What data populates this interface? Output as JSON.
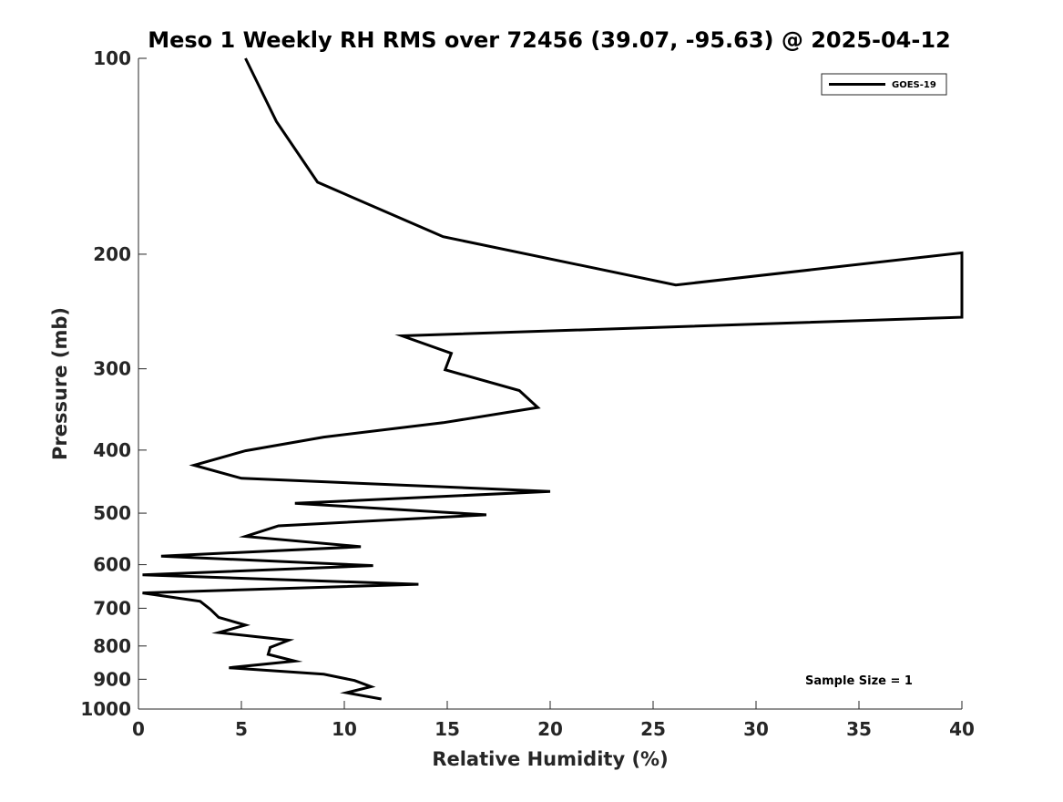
{
  "chart_data": {
    "type": "line",
    "title": "Meso 1 Weekly RH RMS over 72456 (39.07, -95.63) @ 2025-04-12",
    "xlabel": "Relative Humidity (%)",
    "ylabel": "Pressure (mb)",
    "xlim": [
      0,
      40
    ],
    "ylim": [
      100,
      1000
    ],
    "yscale": "log",
    "yreversed": true,
    "grid": false,
    "xticks": [
      "0",
      "5",
      "10",
      "15",
      "20",
      "25",
      "30",
      "35",
      "40"
    ],
    "yticks": [
      "100",
      "200",
      "300",
      "400",
      "500",
      "600",
      "700",
      "800",
      "900",
      "1000"
    ],
    "legend": {
      "position": "top-right",
      "entries": [
        "GOES-19"
      ]
    },
    "annotation": "Sample Size = 1",
    "series": [
      {
        "name": "GOES-19",
        "color": "#000000",
        "points": [
          [
            5.2,
            100
          ],
          [
            6.7,
            125
          ],
          [
            8.7,
            155
          ],
          [
            14.8,
            188
          ],
          [
            26.1,
            223
          ],
          [
            40.0,
            199
          ],
          [
            40.0,
            250
          ],
          [
            12.8,
            267
          ],
          [
            15.2,
            284
          ],
          [
            14.9,
            301
          ],
          [
            18.5,
            324
          ],
          [
            19.4,
            344
          ],
          [
            14.8,
            363
          ],
          [
            9.0,
            382
          ],
          [
            5.2,
            401
          ],
          [
            2.7,
            422
          ],
          [
            5.0,
            442
          ],
          [
            20.0,
            463
          ],
          [
            7.6,
            483
          ],
          [
            16.9,
            503
          ],
          [
            6.8,
            523
          ],
          [
            5.2,
            543
          ],
          [
            10.8,
            563
          ],
          [
            1.1,
            582
          ],
          [
            11.4,
            602
          ],
          [
            0.2,
            622
          ],
          [
            13.6,
            643
          ],
          [
            0.2,
            663
          ],
          [
            3.0,
            683
          ],
          [
            3.5,
            703
          ],
          [
            3.9,
            723
          ],
          [
            5.2,
            743
          ],
          [
            3.9,
            763
          ],
          [
            7.3,
            784
          ],
          [
            6.4,
            804
          ],
          [
            6.3,
            824
          ],
          [
            7.6,
            844
          ],
          [
            4.4,
            864
          ],
          [
            9.0,
            884
          ],
          [
            10.5,
            904
          ],
          [
            11.3,
            924
          ],
          [
            10.1,
            944
          ],
          [
            11.8,
            965
          ]
        ]
      }
    ]
  }
}
